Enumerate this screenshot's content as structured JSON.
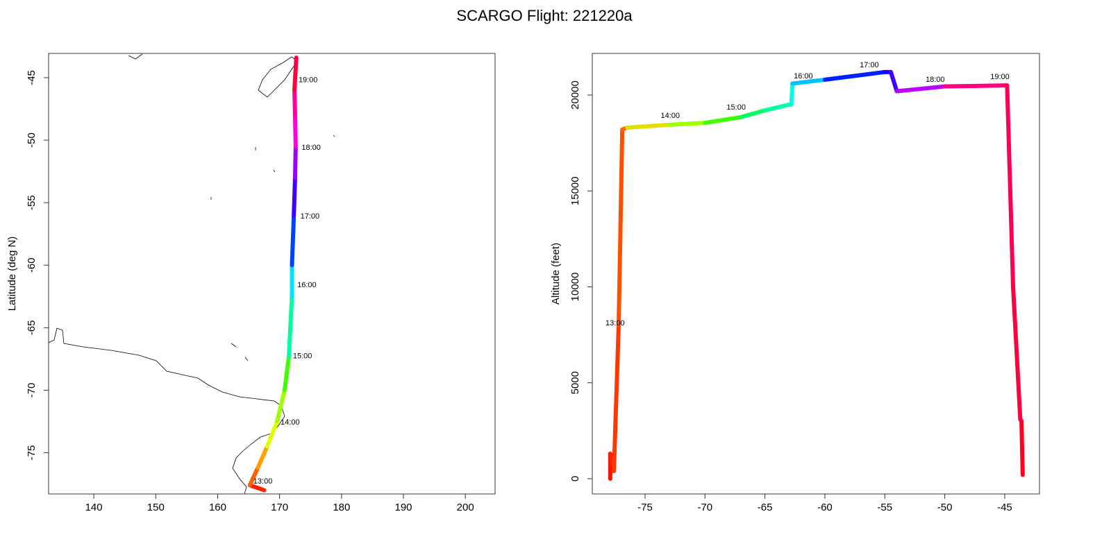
{
  "title": "SCARGO Flight: 221220a",
  "chart_data": [
    {
      "type": "line",
      "ylabel": "Latitude (deg N)",
      "xlim": [
        132.7,
        204.8
      ],
      "ylim": [
        -78.3,
        -43.06
      ],
      "xticks": [
        140,
        150,
        160,
        170,
        180,
        190,
        200
      ],
      "yticks": [
        -45,
        -50,
        -55,
        -60,
        -65,
        -70,
        -75
      ],
      "x": [
        167.5,
        165.2,
        166.5,
        168.0,
        169.6,
        170.8,
        171.5,
        172.0,
        172.0,
        172.3,
        172.5,
        172.6,
        172.5,
        172.4,
        172.7
      ],
      "values": [
        -78.0,
        -77.6,
        -76.2,
        -74.5,
        -72.5,
        -70.0,
        -67.3,
        -62.5,
        -60.0,
        -56.0,
        -53.0,
        -50.5,
        -48.0,
        -46.0,
        -43.4
      ],
      "colors": [
        "#ff0000",
        "#ff2000",
        "#ff6000",
        "#ffa000",
        "#e0ff00",
        "#a0ff00",
        "#40ff00",
        "#00ffa0",
        "#00e0ff",
        "#0040ff",
        "#4000ff",
        "#a000ff",
        "#ff00e0",
        "#ff00a0",
        "#ff0040"
      ],
      "annotations": [
        {
          "text": "13:00",
          "x": 167.3,
          "y": -77.3
        },
        {
          "text": "14:00",
          "x": 171.7,
          "y": -72.6
        },
        {
          "text": "15:00",
          "x": 173.7,
          "y": -67.3
        },
        {
          "text": "16:00",
          "x": 174.4,
          "y": -61.6
        },
        {
          "text": "17:00",
          "x": 174.9,
          "y": -56.1
        },
        {
          "text": "18:00",
          "x": 175.1,
          "y": -50.6
        },
        {
          "text": "19:00",
          "x": 174.6,
          "y": -45.2
        }
      ]
    },
    {
      "type": "line",
      "ylabel": "Altitude (feet)",
      "xlim": [
        -79.4,
        -42.1
      ],
      "ylim": [
        -796,
        22170
      ],
      "xticks": [
        -75,
        -70,
        -65,
        -60,
        -55,
        -50,
        -45
      ],
      "yticks": [
        0,
        5000,
        10000,
        15000,
        20000
      ],
      "x": [
        -77.9,
        -77.9,
        -77.6,
        -77.2,
        -76.9,
        -76.5,
        -73,
        -70,
        -67,
        -65,
        -63,
        -62.8,
        -62.7,
        -60,
        -55,
        -54.5,
        -54,
        -50,
        -45,
        -44.8,
        -44.3,
        -43.7,
        -43.6,
        -43.5
      ],
      "values": [
        0,
        1300,
        400,
        8000,
        18200,
        18300,
        18450,
        18550,
        18850,
        19200,
        19500,
        19500,
        20600,
        20800,
        21200,
        21200,
        20200,
        20450,
        20500,
        20500,
        10000,
        3100,
        3000,
        200
      ],
      "colors": [
        "#ff0000",
        "#ff1000",
        "#ff2000",
        "#ff3800",
        "#ff5000",
        "#ff6000",
        "#e0e000",
        "#a0ff00",
        "#40ff00",
        "#00ff60",
        "#00ffa0",
        "#00ffc0",
        "#00ffe0",
        "#00c0ff",
        "#0020ff",
        "#2000ff",
        "#4000ff",
        "#c000ff",
        "#ff0080",
        "#ff0060",
        "#ff0050",
        "#ff0040",
        "#ff0030",
        "#ff0020"
      ],
      "annotations": [
        {
          "text": "13:00",
          "x": -77.5,
          "y": 8100
        },
        {
          "text": "14:00",
          "x": -72.9,
          "y": 18920
        },
        {
          "text": "15:00",
          "x": -67.4,
          "y": 19350
        },
        {
          "text": "16:00",
          "x": -61.8,
          "y": 20980
        },
        {
          "text": "17:00",
          "x": -56.3,
          "y": 21560
        },
        {
          "text": "18:00",
          "x": -50.8,
          "y": 20800
        },
        {
          "text": "19:00",
          "x": -45.4,
          "y": 20940
        }
      ]
    }
  ]
}
